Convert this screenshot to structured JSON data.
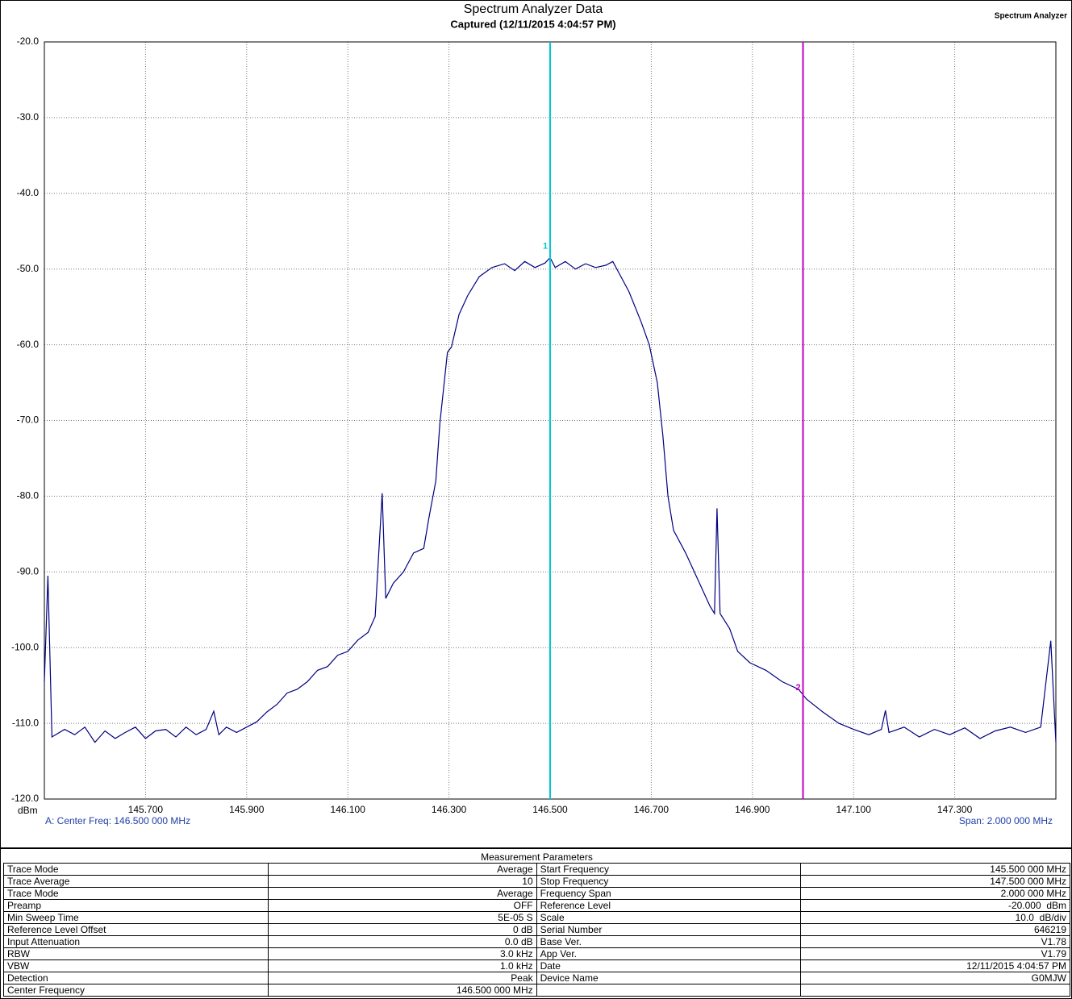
{
  "chart_data": {
    "type": "line",
    "title": "Spectrum Analyzer Data",
    "subtitle": "Captured (12/11/2015 4:04:57 PM)",
    "corner_label": "Spectrum Analyzer",
    "y_label": "dBm",
    "annotation_left": "A: Center Freq: 146.500 000 MHz",
    "annotation_right": "Span: 2.000 000 MHz",
    "color": "#000080",
    "grid": true,
    "xlim": [
      145.5,
      147.5
    ],
    "ylim": [
      -120,
      -20
    ],
    "xticks": [
      {
        "value": 145.7,
        "label": "145.700"
      },
      {
        "value": 145.9,
        "label": "145.900"
      },
      {
        "value": 146.1,
        "label": "146.100"
      },
      {
        "value": 146.3,
        "label": "146.300"
      },
      {
        "value": 146.5,
        "label": "146.500"
      },
      {
        "value": 146.7,
        "label": "146.700"
      },
      {
        "value": 146.9,
        "label": "146.900"
      },
      {
        "value": 147.1,
        "label": "147.100"
      },
      {
        "value": 147.3,
        "label": "147.300"
      }
    ],
    "yticks": [
      {
        "value": -20,
        "label": "-20.0"
      },
      {
        "value": -30,
        "label": "-30.0"
      },
      {
        "value": -40,
        "label": "-40.0"
      },
      {
        "value": -50,
        "label": "-50.0"
      },
      {
        "value": -60,
        "label": "-60.0"
      },
      {
        "value": -70,
        "label": "-70.0"
      },
      {
        "value": -80,
        "label": "-80.0"
      },
      {
        "value": -90,
        "label": "-90.0"
      },
      {
        "value": -100,
        "label": "-100.0"
      },
      {
        "value": -110,
        "label": "-110.0"
      },
      {
        "value": -120,
        "label": "-120.0"
      }
    ],
    "markers": [
      {
        "label": "1",
        "x": 146.5,
        "color": "#00c8d8"
      },
      {
        "label": "2",
        "x": 147.0,
        "color": "#c000c0"
      }
    ],
    "x": [
      145.5,
      145.507,
      145.515,
      145.54,
      145.56,
      145.58,
      145.6,
      145.62,
      145.64,
      145.66,
      145.68,
      145.7,
      145.72,
      145.74,
      145.76,
      145.78,
      145.8,
      145.82,
      145.835,
      145.845,
      145.86,
      145.88,
      145.9,
      145.92,
      145.94,
      145.96,
      145.98,
      146.0,
      146.02,
      146.04,
      146.06,
      146.08,
      146.1,
      146.12,
      146.14,
      146.154,
      146.168,
      146.175,
      146.19,
      146.21,
      146.23,
      146.25,
      146.26,
      146.274,
      146.282,
      146.297,
      146.305,
      146.32,
      146.337,
      146.36,
      146.385,
      146.41,
      146.43,
      146.45,
      146.47,
      146.49,
      146.5,
      146.51,
      146.53,
      146.55,
      146.57,
      146.59,
      146.61,
      146.624,
      146.64,
      146.656,
      146.68,
      146.696,
      146.712,
      146.723,
      146.733,
      146.744,
      146.768,
      146.792,
      146.816,
      146.825,
      146.83,
      146.836,
      146.855,
      146.871,
      146.895,
      146.927,
      146.959,
      146.991,
      147.007,
      147.039,
      147.071,
      147.1,
      147.13,
      147.155,
      147.163,
      147.17,
      147.2,
      147.23,
      147.26,
      147.29,
      147.32,
      147.35,
      147.38,
      147.41,
      147.44,
      147.47,
      147.49,
      147.5
    ],
    "values": [
      -104.5,
      -90.5,
      -111.8,
      -110.8,
      -111.5,
      -110.5,
      -112.5,
      -111.0,
      -112.0,
      -111.2,
      -110.5,
      -112.0,
      -111.0,
      -110.8,
      -111.8,
      -110.5,
      -111.5,
      -110.8,
      -108.4,
      -111.5,
      -110.5,
      -111.2,
      -110.5,
      -109.8,
      -108.5,
      -107.5,
      -106.0,
      -105.5,
      -104.5,
      -103.0,
      -102.5,
      -101.0,
      -100.5,
      -99.0,
      -98.0,
      -95.9,
      -79.6,
      -93.5,
      -91.5,
      -90.0,
      -87.5,
      -86.9,
      -83.0,
      -78.0,
      -70.4,
      -61.0,
      -60.3,
      -56.0,
      -53.5,
      -51.0,
      -49.8,
      -49.3,
      -50.2,
      -49.0,
      -49.8,
      -49.2,
      -48.5,
      -49.8,
      -49.0,
      -50.0,
      -49.3,
      -49.8,
      -49.5,
      -49.0,
      -51.0,
      -53.0,
      -57.0,
      -60.0,
      -65.0,
      -72.0,
      -80.0,
      -84.5,
      -87.5,
      -91.0,
      -94.5,
      -95.5,
      -81.6,
      -95.5,
      -97.5,
      -100.5,
      -102.0,
      -103.0,
      -104.5,
      -105.5,
      -106.8,
      -108.5,
      -110.0,
      -110.8,
      -111.5,
      -110.8,
      -108.3,
      -111.2,
      -110.5,
      -111.8,
      -110.8,
      -111.5,
      -110.6,
      -112.0,
      -111.0,
      -110.5,
      -111.2,
      -110.5,
      -99.1,
      -112.5
    ]
  },
  "table": {
    "title": "Measurement Parameters",
    "rows": [
      [
        "Trace Mode",
        "Average",
        "Start Frequency",
        "145.500 000 MHz"
      ],
      [
        "Trace Average",
        "10",
        "Stop Frequency",
        "147.500 000 MHz"
      ],
      [
        "Trace Mode",
        "Average",
        "Frequency Span",
        "2.000 000 MHz"
      ],
      [
        "Preamp",
        "OFF",
        "Reference Level",
        "-20.000  dBm"
      ],
      [
        "Min Sweep Time",
        "5E-05 S",
        "Scale",
        "10.0  dB/div"
      ],
      [
        "Reference Level Offset",
        "0 dB",
        "Serial Number",
        "646219"
      ],
      [
        "Input Attenuation",
        "0.0 dB",
        "Base Ver.",
        "V1.78"
      ],
      [
        "RBW",
        "3.0 kHz",
        "App Ver.",
        "V1.79"
      ],
      [
        "VBW",
        "1.0 kHz",
        "Date",
        "12/11/2015 4:04:57 PM"
      ],
      [
        "Detection",
        "Peak",
        "Device Name",
        "G0MJW"
      ],
      [
        "Center Frequency",
        "146.500 000 MHz"
      ]
    ]
  }
}
